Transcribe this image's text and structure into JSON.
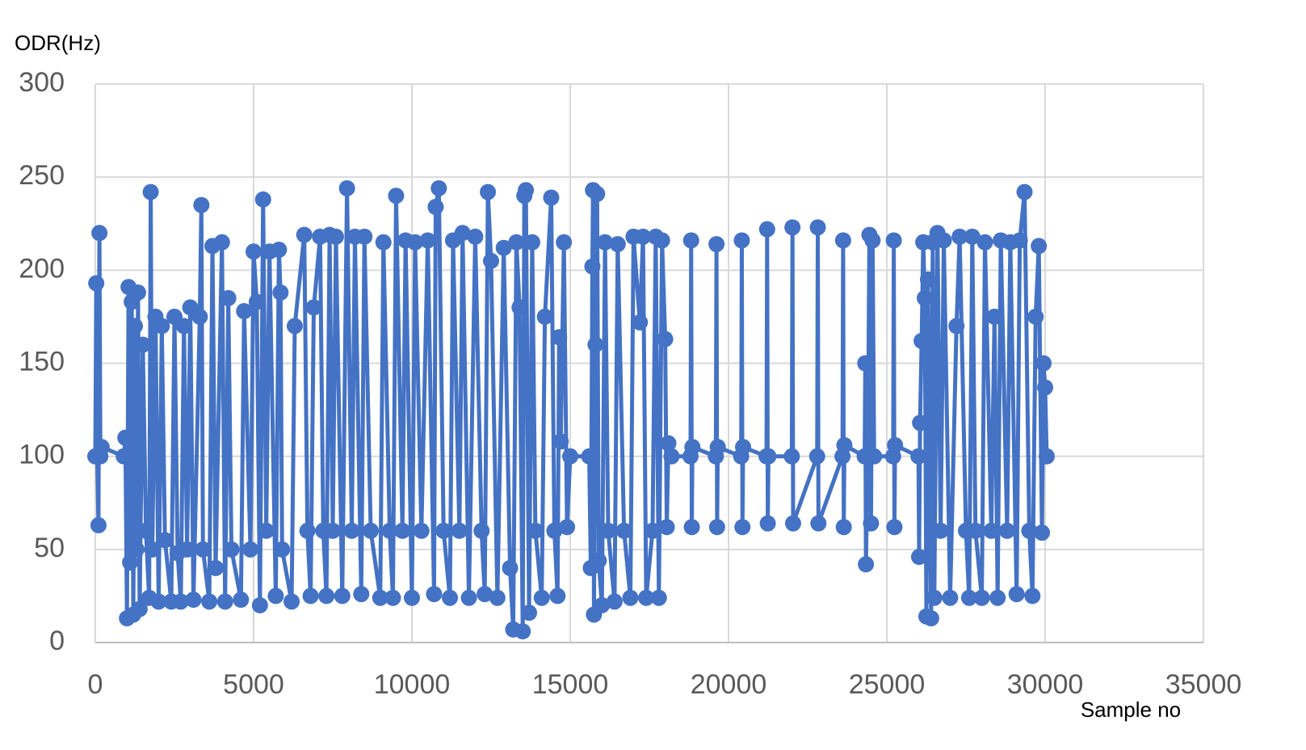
{
  "chart_data": {
    "type": "line",
    "title": "ODR(Hz)",
    "x_label": "Sample no",
    "color": "#4472c4",
    "markers": true,
    "grid": true,
    "xlim": [
      0,
      35000
    ],
    "xticks": [
      0,
      5000,
      10000,
      15000,
      20000,
      25000,
      30000,
      35000
    ],
    "ylim": [
      0,
      300
    ],
    "yticks": [
      0,
      50,
      100,
      150,
      200,
      250,
      300
    ],
    "x": [
      0,
      30,
      60,
      100,
      130,
      160,
      200,
      900,
      950,
      1000,
      1050,
      1100,
      1150,
      1200,
      1250,
      1300,
      1350,
      1400,
      1500,
      1600,
      1700,
      1750,
      1800,
      1900,
      2000,
      2100,
      2200,
      2400,
      2500,
      2600,
      2700,
      2800,
      2900,
      3000,
      3100,
      3300,
      3350,
      3400,
      3600,
      3700,
      3800,
      4000,
      4100,
      4200,
      4300,
      4600,
      4700,
      4900,
      5000,
      5100,
      5200,
      5300,
      5400,
      5500,
      5700,
      5800,
      5850,
      5900,
      6200,
      6300,
      6600,
      6700,
      6800,
      6900,
      7100,
      7200,
      7300,
      7400,
      7500,
      7600,
      7800,
      7950,
      8100,
      8200,
      8400,
      8500,
      8700,
      9000,
      9100,
      9300,
      9400,
      9500,
      9700,
      9800,
      10000,
      10100,
      10300,
      10500,
      10700,
      10750,
      10850,
      11000,
      11200,
      11300,
      11500,
      11600,
      11800,
      12000,
      12200,
      12300,
      12400,
      12500,
      12700,
      12900,
      13100,
      13200,
      13300,
      13400,
      13500,
      13550,
      13600,
      13700,
      13800,
      13900,
      14100,
      14200,
      14400,
      14500,
      14600,
      14650,
      14700,
      14800,
      14900,
      15000,
      15600,
      15650,
      15700,
      15720,
      15750,
      15800,
      15850,
      15900,
      16000,
      16100,
      16200,
      16400,
      16500,
      16700,
      16900,
      17000,
      17200,
      17300,
      17400,
      17600,
      17700,
      17800,
      17900,
      18000,
      18050,
      18100,
      18200,
      18800,
      18820,
      18840,
      18860,
      19600,
      19620,
      19640,
      19660,
      20400,
      20420,
      20440,
      20460,
      21200,
      21220,
      21240,
      21260,
      22000,
      22020,
      22040,
      22800,
      22820,
      22840,
      23600,
      23620,
      23640,
      23660,
      24300,
      24320,
      24340,
      24400,
      24450,
      24500,
      24550,
      24600,
      25200,
      25220,
      25240,
      25260,
      26000,
      26020,
      26050,
      26100,
      26150,
      26200,
      26250,
      26300,
      26400,
      26450,
      26500,
      26600,
      26700,
      26800,
      27000,
      27200,
      27300,
      27500,
      27600,
      27700,
      27800,
      28000,
      28100,
      28300,
      28400,
      28500,
      28600,
      28800,
      28900,
      29100,
      29200,
      29350,
      29500,
      29600,
      29700,
      29800,
      29900,
      29950,
      30000,
      30050
    ],
    "values": [
      100,
      193,
      100,
      63,
      220,
      100,
      105,
      100,
      110,
      13,
      191,
      43,
      183,
      15,
      170,
      50,
      188,
      18,
      160,
      60,
      24,
      242,
      50,
      175,
      22,
      170,
      55,
      22,
      175,
      48,
      22,
      170,
      50,
      180,
      23,
      175,
      235,
      50,
      22,
      213,
      40,
      215,
      22,
      185,
      50,
      23,
      178,
      50,
      210,
      183,
      20,
      238,
      60,
      210,
      25,
      211,
      188,
      50,
      22,
      170,
      219,
      60,
      25,
      180,
      218,
      60,
      25,
      219,
      60,
      218,
      25,
      244,
      60,
      218,
      26,
      218,
      60,
      24,
      215,
      60,
      24,
      240,
      60,
      216,
      24,
      215,
      60,
      216,
      26,
      234,
      244,
      60,
      24,
      216,
      60,
      220,
      24,
      218,
      60,
      26,
      242,
      205,
      24,
      212,
      40,
      7,
      215,
      180,
      6,
      240,
      243,
      16,
      215,
      60,
      24,
      175,
      239,
      60,
      25,
      164,
      108,
      215,
      62,
      100,
      100,
      40,
      202,
      243,
      15,
      160,
      241,
      44,
      20,
      215,
      60,
      22,
      214,
      60,
      24,
      218,
      172,
      218,
      24,
      60,
      218,
      24,
      216,
      163,
      62,
      107,
      100,
      100,
      216,
      62,
      105,
      100,
      214,
      62,
      105,
      100,
      216,
      62,
      105,
      100,
      222,
      64,
      100,
      100,
      223,
      64,
      100,
      223,
      64,
      100,
      216,
      62,
      106,
      100,
      150,
      42,
      100,
      219,
      64,
      216,
      100,
      100,
      216,
      62,
      106,
      100,
      46,
      118,
      162,
      215,
      185,
      14,
      195,
      13,
      215,
      24,
      220,
      60,
      216,
      24,
      170,
      218,
      60,
      24,
      218,
      60,
      24,
      215,
      60,
      175,
      24,
      216,
      60,
      215,
      26,
      216,
      242,
      60,
      25,
      175,
      213,
      59,
      150,
      137,
      100
    ]
  }
}
